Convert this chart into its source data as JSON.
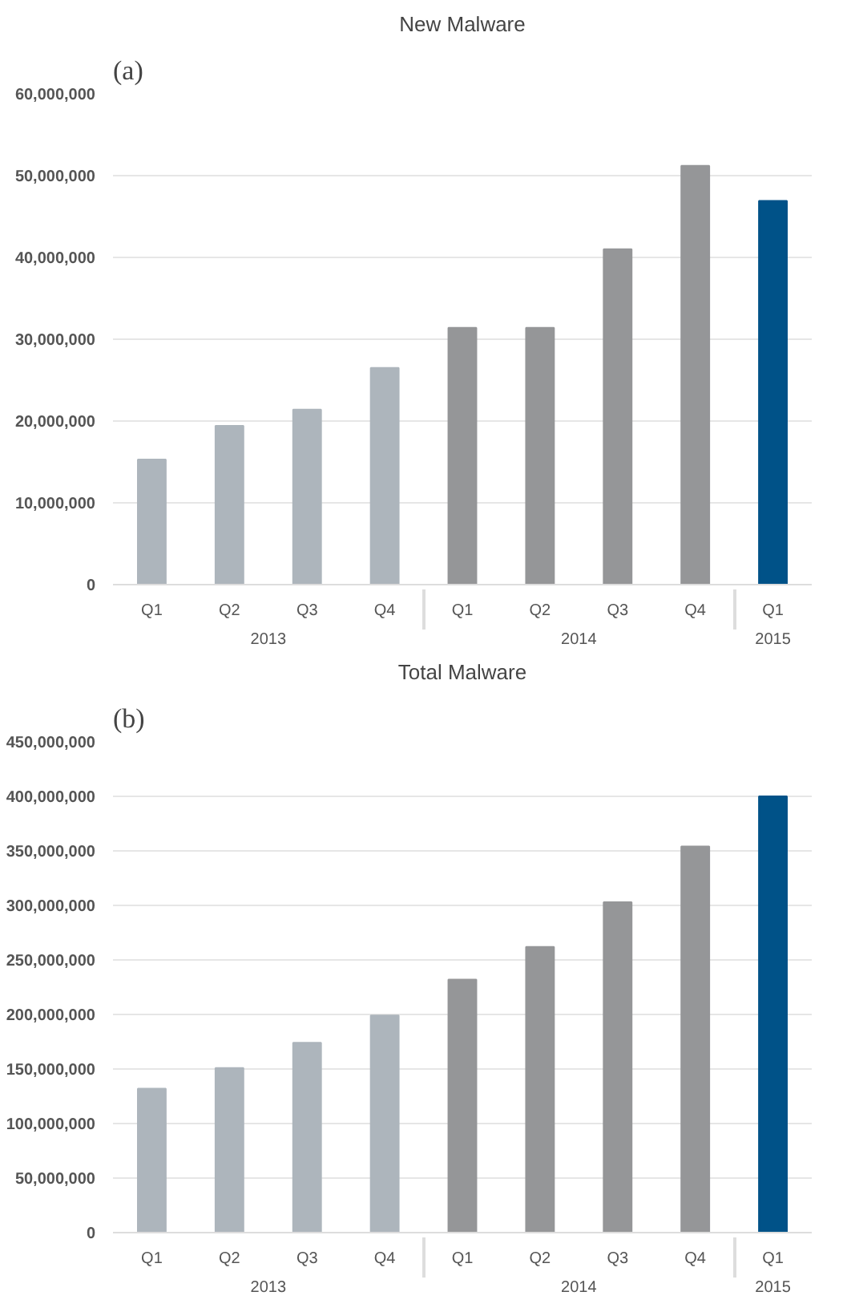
{
  "chart_data": [
    {
      "type": "bar",
      "title": "New Malware",
      "annotations": [
        "(a)",
        "2013",
        "2014",
        "2015"
      ],
      "categories": [
        "Q1",
        "Q2",
        "Q3",
        "Q4",
        "Q1",
        "Q2",
        "Q3",
        "Q4",
        "Q1"
      ],
      "values": [
        15300000,
        19400000,
        21400000,
        26500000,
        31400000,
        31400000,
        41000000,
        51200000,
        46900000
      ],
      "colors": [
        "#adb5bc",
        "#adb5bc",
        "#adb5bc",
        "#adb5bc",
        "#959698",
        "#959698",
        "#959698",
        "#959698",
        "#005288"
      ],
      "ylim": [
        0,
        60000000
      ],
      "yticks": [
        {
          "value": 0,
          "label": "0"
        },
        {
          "value": 10000000,
          "label": "10,000,000"
        },
        {
          "value": 20000000,
          "label": "20,000,000"
        },
        {
          "value": 30000000,
          "label": "30,000,000"
        },
        {
          "value": 40000000,
          "label": "40,000,000"
        },
        {
          "value": 50000000,
          "label": "50,000,000"
        },
        {
          "value": 60000000,
          "label": "60,000,000"
        }
      ],
      "grid": "y"
    },
    {
      "type": "bar",
      "title": "Total Malware",
      "annotations": [
        "(b)",
        "2013",
        "2014",
        "2015"
      ],
      "categories": [
        "Q1",
        "Q2",
        "Q3",
        "Q4",
        "Q1",
        "Q2",
        "Q3",
        "Q4",
        "Q1"
      ],
      "values": [
        132000000,
        151000000,
        174000000,
        199000000,
        232000000,
        262000000,
        303000000,
        354000000,
        400000000
      ],
      "colors": [
        "#adb5bc",
        "#adb5bc",
        "#adb5bc",
        "#adb5bc",
        "#959698",
        "#959698",
        "#959698",
        "#959698",
        "#005288"
      ],
      "ylim": [
        0,
        450000000
      ],
      "yticks": [
        {
          "value": 0,
          "label": "0"
        },
        {
          "value": 50000000,
          "label": "50,000,000"
        },
        {
          "value": 100000000,
          "label": "100,000,000"
        },
        {
          "value": 150000000,
          "label": "150,000,000"
        },
        {
          "value": 200000000,
          "label": "200,000,000"
        },
        {
          "value": 250000000,
          "label": "250,000,000"
        },
        {
          "value": 300000000,
          "label": "300,000,000"
        },
        {
          "value": 350000000,
          "label": "350,000,000"
        },
        {
          "value": 400000000,
          "label": "400,000,000"
        },
        {
          "value": 450000000,
          "label": "450,000,000"
        }
      ],
      "grid": "y"
    }
  ]
}
